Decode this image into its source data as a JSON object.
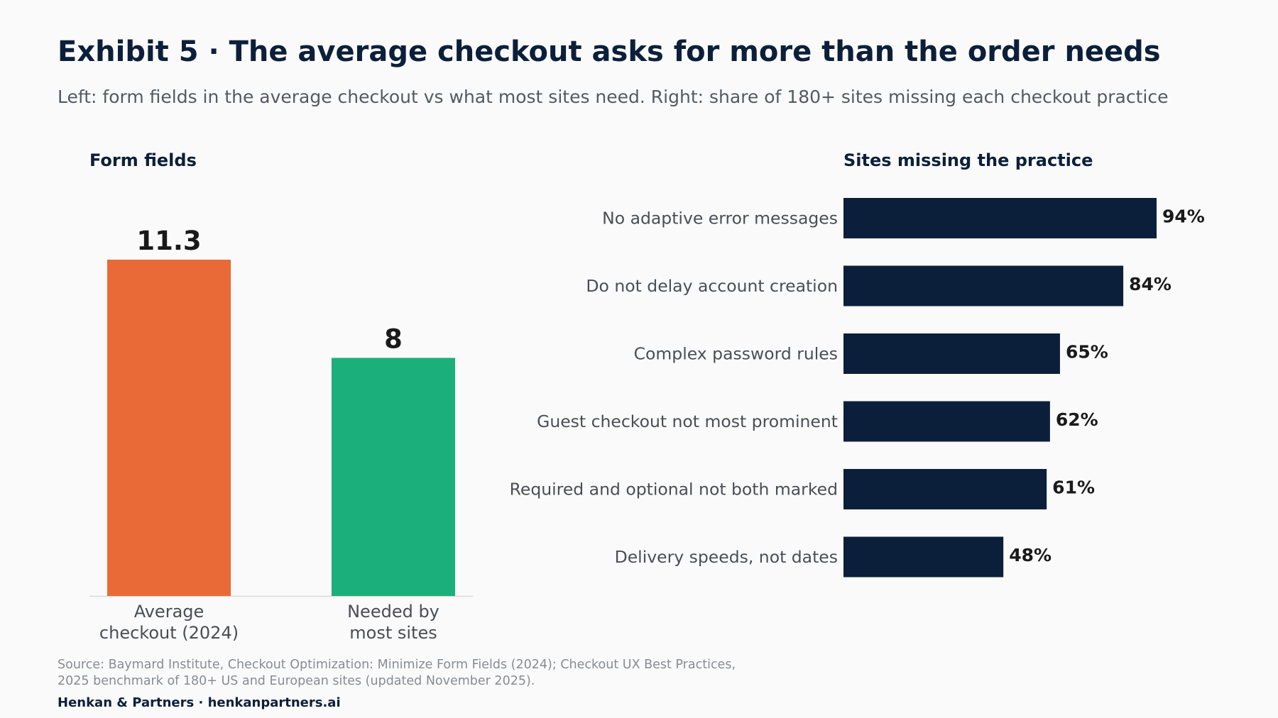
{
  "title": "Exhibit 5 · The average checkout asks for more than the order needs",
  "subtitle": "Left: form fields in the average checkout vs what most sites need. Right: share of 180+ sites missing each checkout practice",
  "source_lines": [
    "Source: Baymard Institute, Checkout Optimization: Minimize Form Fields (2024); Checkout UX Best Practices,",
    "2025 benchmark of 180+ US and European sites (updated November 2025)."
  ],
  "brand": "Henkan & Partners · henkanpartners.ai",
  "colors": {
    "average_bar": "#e96a36",
    "needed_bar": "#1baf7c",
    "practice_bar": "#0c1f3a",
    "value_label": "#1a1a1a",
    "category_label": "#4a4e54"
  },
  "chart_data": [
    {
      "type": "bar",
      "panel_title": "Form fields",
      "categories": [
        [
          "Average",
          "checkout (2024)"
        ],
        [
          "Needed by",
          "most sites"
        ]
      ],
      "values": [
        11.3,
        8
      ],
      "value_labels": [
        "11.3",
        "8"
      ],
      "ylim": [
        0,
        11.3
      ],
      "grid": false
    },
    {
      "type": "bar",
      "orientation": "horizontal",
      "panel_title": "Sites missing the practice",
      "categories": [
        "No adaptive error messages",
        "Do not delay account creation",
        "Complex password rules",
        "Guest checkout not most prominent",
        "Required and optional not both marked",
        "Delivery speeds, not dates"
      ],
      "values": [
        94,
        84,
        65,
        62,
        61,
        48
      ],
      "value_labels": [
        "94%",
        "84%",
        "65%",
        "62%",
        "61%",
        "48%"
      ],
      "unit": "%",
      "xlim": [
        0,
        94
      ],
      "grid": false
    }
  ]
}
